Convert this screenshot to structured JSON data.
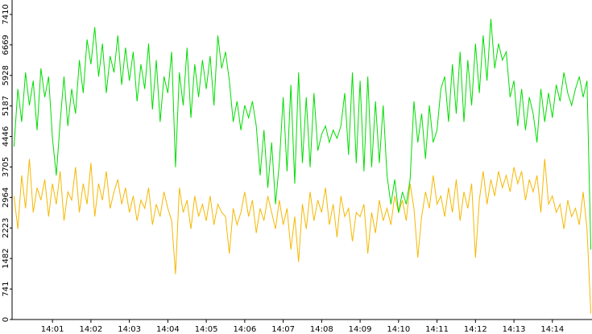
{
  "chart_data": {
    "type": "line",
    "x": [
      0,
      0.1,
      0.2,
      0.3,
      0.4,
      0.5,
      0.6,
      0.7,
      0.8,
      0.9,
      1,
      1.1,
      1.2,
      1.3,
      1.4,
      1.5,
      1.6,
      1.7,
      1.8,
      1.9,
      2,
      2.1,
      2.2,
      2.3,
      2.4,
      2.5,
      2.6,
      2.7,
      2.8,
      2.9,
      3,
      3.1,
      3.2,
      3.3,
      3.4,
      3.5,
      3.6,
      3.7,
      3.8,
      3.9,
      4,
      4.1,
      4.2,
      4.3,
      4.4,
      4.5,
      4.6,
      4.7,
      4.8,
      4.9,
      5,
      5.1,
      5.2,
      5.3,
      5.4,
      5.5,
      5.6,
      5.7,
      5.8,
      5.9,
      6,
      6.1,
      6.2,
      6.3,
      6.4,
      6.5,
      6.6,
      6.7,
      6.8,
      6.9,
      7,
      7.1,
      7.2,
      7.3,
      7.4,
      7.5,
      7.6,
      7.7,
      7.8,
      7.9,
      8,
      8.1,
      8.2,
      8.3,
      8.4,
      8.5,
      8.6,
      8.7,
      8.8,
      8.9,
      9,
      9.1,
      9.2,
      9.3,
      9.4,
      9.5,
      9.6,
      9.7,
      9.8,
      9.9,
      10,
      10.1,
      10.2,
      10.3,
      10.4,
      10.5,
      10.6,
      10.7,
      10.8,
      10.9,
      11,
      11.1,
      11.2,
      11.3,
      11.4,
      11.5,
      11.6,
      11.7,
      11.8,
      11.9,
      12,
      12.1,
      12.2,
      12.3,
      12.4,
      12.5,
      12.6,
      12.7,
      12.8,
      12.9,
      13,
      13.1,
      13.2,
      13.3,
      13.4,
      13.5,
      13.6,
      13.7,
      13.8,
      13.9,
      14,
      14.1,
      14.2,
      14.3,
      14.4,
      14.5,
      14.6,
      14.7,
      14.8,
      14.9,
      15
    ],
    "series": [
      {
        "color": "#00dd00",
        "values": [
          4200,
          5600,
          4800,
          6000,
          5200,
          5800,
          4600,
          6100,
          5400,
          5900,
          4400,
          3500,
          4800,
          5900,
          4700,
          5600,
          5000,
          6300,
          5500,
          6800,
          6200,
          7100,
          5900,
          6700,
          5500,
          6400,
          6000,
          6900,
          5700,
          6600,
          5800,
          6500,
          5300,
          6200,
          5600,
          6700,
          5100,
          6300,
          4800,
          5900,
          5500,
          6500,
          3700,
          6000,
          5200,
          6600,
          4900,
          6200,
          5400,
          6300,
          5600,
          6400,
          5200,
          6900,
          6100,
          6500,
          5800,
          4800,
          5300,
          4600,
          5200,
          4900,
          5300,
          4700,
          3500,
          4600,
          3200,
          4300,
          2800,
          3800,
          5400,
          3600,
          5700,
          3300,
          6000,
          3800,
          5400,
          3700,
          5500,
          4100,
          4500,
          4700,
          4300,
          4600,
          4400,
          4700,
          5500,
          4000,
          6000,
          3800,
          5800,
          3600,
          5900,
          3700,
          5300,
          3800,
          5200,
          3500,
          2800,
          3400,
          2600,
          3100,
          2800,
          3400,
          5300,
          4300,
          5000,
          3900,
          5200,
          4300,
          4600,
          5600,
          5900,
          4800,
          6200,
          5000,
          6500,
          4800,
          6300,
          5200,
          6700,
          5500,
          6900,
          5800,
          7300,
          6100,
          6700,
          6300,
          6500,
          5400,
          5800,
          4700,
          5600,
          4600,
          5400,
          5000,
          4300,
          5600,
          4800,
          5500,
          4900,
          5700,
          5300,
          6000,
          5500,
          5200,
          5600,
          5900,
          5400,
          5800,
          1700
        ]
      },
      {
        "color": "#f5b800",
        "values": [
          3000,
          2200,
          3500,
          2700,
          3900,
          2600,
          3200,
          2900,
          3400,
          2500,
          3300,
          2800,
          3600,
          2400,
          3100,
          2900,
          3700,
          2600,
          3300,
          2800,
          3800,
          2500,
          3300,
          2900,
          3600,
          2700,
          3100,
          3400,
          2800,
          3200,
          2600,
          3000,
          2400,
          2900,
          2700,
          3200,
          2300,
          2800,
          2500,
          3100,
          2700,
          2400,
          1100,
          3200,
          2600,
          2900,
          2200,
          3000,
          2500,
          2800,
          2400,
          3000,
          2300,
          2800,
          2600,
          2500,
          1600,
          2700,
          2300,
          2600,
          3100,
          2500,
          2900,
          2100,
          2700,
          2400,
          3000,
          2600,
          2200,
          2900,
          2300,
          2700,
          1700,
          2500,
          1400,
          2800,
          2200,
          3100,
          2400,
          2900,
          2600,
          3200,
          2300,
          2800,
          2000,
          3000,
          2500,
          2700,
          1900,
          2600,
          2500,
          2800,
          1600,
          2600,
          2100,
          2900,
          2400,
          2700,
          2300,
          3000,
          2600,
          2900,
          2400,
          3300,
          2700,
          1500,
          2500,
          3100,
          2700,
          3500,
          2800,
          3000,
          2500,
          3200,
          2600,
          3400,
          2400,
          3100,
          2700,
          3300,
          1500,
          2900,
          3600,
          2800,
          3400,
          3000,
          3600,
          3200,
          3500,
          3100,
          3700,
          3300,
          3600,
          2900,
          3400,
          3100,
          3500,
          2600,
          3900,
          2800,
          3000,
          2600,
          2800,
          2200,
          2900,
          2500,
          2700,
          2300,
          3100,
          2200,
          150
        ]
      }
    ],
    "xlim": [
      -0.05,
      15.03
    ],
    "xticks": [
      {
        "value": 1,
        "label": "14:01"
      },
      {
        "value": 2,
        "label": "14:02"
      },
      {
        "value": 3,
        "label": "14:03"
      },
      {
        "value": 4,
        "label": "14:04"
      },
      {
        "value": 5,
        "label": "14:05"
      },
      {
        "value": 6,
        "label": "14:06"
      },
      {
        "value": 7,
        "label": "14:07"
      },
      {
        "value": 8,
        "label": "14:08"
      },
      {
        "value": 9,
        "label": "14:09"
      },
      {
        "value": 10,
        "label": "14:10"
      },
      {
        "value": 11,
        "label": "14:11"
      },
      {
        "value": 12,
        "label": "14:12"
      },
      {
        "value": 13,
        "label": "14:13"
      },
      {
        "value": 14,
        "label": "14:14"
      }
    ],
    "ylim": [
      0,
      7760
    ],
    "yticks": [
      0,
      741,
      1482,
      2223,
      2964,
      3705,
      4446,
      5187,
      5928,
      6669,
      7410
    ]
  }
}
